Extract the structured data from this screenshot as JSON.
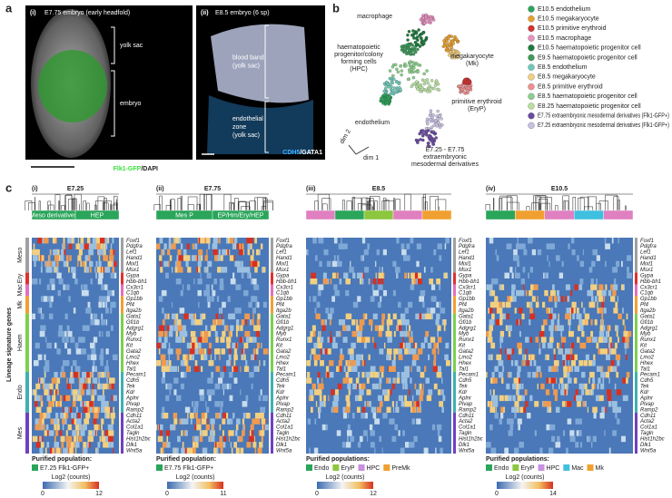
{
  "panel_a": {
    "label": "a",
    "images": [
      {
        "label": "(i)",
        "title": "E7.75 embryo (early headfold)",
        "annotations": [
          "yolk sac",
          "embryo"
        ],
        "caption_colored": "Flk1-GFP",
        "caption_rest": "/DAPI",
        "caption_color": "#3ce03c"
      },
      {
        "label": "(ii)",
        "title": "E8.5 embryo (6 sp)",
        "annotations": [
          [
            "blood band",
            "(yolk sac)"
          ],
          [
            "endothelial",
            "zone",
            "(yolk sac)"
          ]
        ],
        "caption_colored": "CDH5",
        "caption_rest": "/GATA1",
        "caption_color": "#40b0ff"
      }
    ]
  },
  "panel_b": {
    "label": "b",
    "axis_labels": [
      "dim 1",
      "dim 2"
    ],
    "cluster_labels": [
      [
        "macrophage"
      ],
      [
        "haematopoietic",
        "progenitor/colony",
        "forming cells",
        "(HPC)"
      ],
      [
        "megakaryocyte",
        "(Mk)"
      ],
      [
        "primitive erythroid",
        "(EryP)"
      ],
      [
        "endothelium"
      ],
      [
        "E7.25 - E7.75",
        "extraembryonic",
        "mesodermal derivatives"
      ]
    ],
    "legend": [
      {
        "name": "E10.5 endothelium",
        "color": "#2aa55a"
      },
      {
        "name": "E10.5 megakaryocyte",
        "color": "#e8a030"
      },
      {
        "name": "E10.5 primitive erythroid",
        "color": "#d63030"
      },
      {
        "name": "E10.5 macrophage",
        "color": "#e890c0"
      },
      {
        "name": "E10.5 haematopoietic progenitor cell",
        "color": "#1e7a3c"
      },
      {
        "name": "E9.5 haematopoietic progenitor cell",
        "color": "#3f9a5a"
      },
      {
        "name": "E8.5 endothelium",
        "color": "#70c8b8"
      },
      {
        "name": "E8.5 megakaryocyte",
        "color": "#f3d080"
      },
      {
        "name": "E8.5 primitive erythroid",
        "color": "#f09090"
      },
      {
        "name": "E8.5 haematopoietic progenitor cell",
        "color": "#8ccf8c"
      },
      {
        "name": "E8.25 haematopoietic progenitor cell",
        "color": "#b8e0a0"
      },
      {
        "name": "E7.75 extraembryonic mesodermal derivatives (Flk1-GFP+)",
        "color": "#6a4ca0"
      },
      {
        "name": "E7.25 extraembryonic mesodermal derivatives (Flk1-GFP+)",
        "color": "#c8c0e0"
      }
    ]
  },
  "panel_c": {
    "label": "c",
    "y_title": "Lineage signature genes",
    "groups": [
      {
        "name": "Meso",
        "color": "#a0a0a0",
        "genes": [
          "Foxf1",
          "Pdgfra",
          "Lef1",
          "Hand1",
          "Mixl1",
          "Msx1"
        ]
      },
      {
        "name": "Ery",
        "color": "#e03030",
        "genes": [
          "Gypa",
          "Hbb-bh1"
        ]
      },
      {
        "name": "Mac",
        "color": "#e070c0",
        "genes": [
          "Cx3cr1",
          "C1qb"
        ]
      },
      {
        "name": "Mk",
        "color": "#f0a030",
        "genes": [
          "Gp1bb",
          "Pf4",
          "Itga2b"
        ]
      },
      {
        "name": "Haem",
        "color": "#7cd050",
        "genes": [
          "Gata1",
          "Gfi1b",
          "Adgrg1",
          "Myb",
          "Runx1",
          "Kit",
          "Gata2",
          "Lmo2",
          "Hhex",
          "Tal1"
        ]
      },
      {
        "name": "Endo",
        "color": "#40b0b0",
        "genes": [
          "Pecam1",
          "Cdh5",
          "Tek",
          "Kdr",
          "Aplnr",
          "Plvap",
          "Ramp2"
        ]
      },
      {
        "name": "Mes",
        "color": "#7040c0",
        "genes": [
          "Cdh11",
          "Acta2",
          "Col1a1",
          "Tagln",
          "Hist1h2bc",
          "Dlk1",
          "Wnt5a"
        ]
      }
    ],
    "heatmaps": [
      {
        "label": "(i)",
        "title": "E7.25",
        "header": [
          {
            "label": "Meso derivatives",
            "color": "#2aa55a"
          },
          {
            "label": "HEP",
            "color": "#2aa55a"
          }
        ],
        "population_title": "Purified population:",
        "populations": [
          {
            "name": "E7.25 Flk1-GFP+",
            "color": "#2aa55a"
          }
        ],
        "colorbar_title": "Log2 (counts)",
        "colorbar_range": [
          0,
          12
        ]
      },
      {
        "label": "(ii)",
        "title": "E7.75",
        "header": [
          {
            "label": "Mes P",
            "color": "#2aa55a"
          },
          {
            "label": "EP/Hm/Ery/HEP",
            "color": "#2aa55a"
          }
        ],
        "population_title": "Purified population:",
        "populations": [
          {
            "name": "E7.75 Flk1-GFP+",
            "color": "#2aa55a"
          }
        ],
        "colorbar_title": "Log2 (counts)",
        "colorbar_range": [
          0,
          11
        ]
      },
      {
        "label": "(iii)",
        "title": "E8.5",
        "header": [
          {
            "color": "#e080c0"
          },
          {
            "color": "#2aa55a"
          },
          {
            "color": "#8dc63f"
          },
          {
            "color": "#e080c0"
          },
          {
            "color": "#f0a030"
          }
        ],
        "population_title": "Purified populations:",
        "populations": [
          {
            "name": "Endo",
            "color": "#2aa55a"
          },
          {
            "name": "EryP",
            "color": "#8dc63f"
          },
          {
            "name": "HPC",
            "color": "#c890e0"
          },
          {
            "name": "PreMk",
            "color": "#f0a030"
          }
        ],
        "colorbar_title": "Log2 (counts)",
        "colorbar_range": [
          0,
          12
        ]
      },
      {
        "label": "(iv)",
        "title": "E10.5",
        "header": [
          {
            "color": "#2aa55a"
          },
          {
            "color": "#f0a030"
          },
          {
            "color": "#e080c0"
          },
          {
            "color": "#40c0e0"
          },
          {
            "color": "#e080c0"
          }
        ],
        "population_title": "Purified populations:",
        "populations": [
          {
            "name": "Endo",
            "color": "#2aa55a"
          },
          {
            "name": "EryP",
            "color": "#8dc63f"
          },
          {
            "name": "HPC",
            "color": "#c890e0"
          },
          {
            "name": "Mac",
            "color": "#40c0e0"
          },
          {
            "name": "Mk",
            "color": "#f0a030"
          }
        ],
        "colorbar_title": "Log2 (counts)",
        "colorbar_range": [
          0,
          14
        ]
      }
    ]
  }
}
